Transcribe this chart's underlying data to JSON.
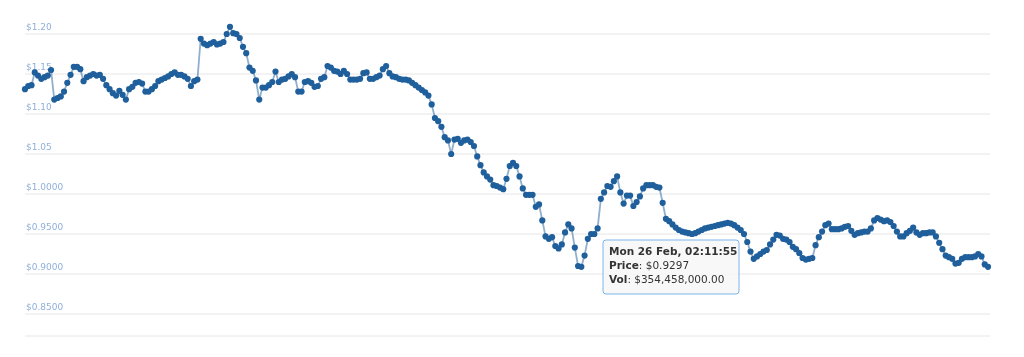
{
  "chart_data": {
    "type": "line",
    "categories": [
      null,
      null,
      null,
      null,
      null,
      null,
      null,
      null,
      null,
      null,
      null,
      null,
      null,
      null,
      null,
      null,
      null,
      null,
      null,
      null,
      null,
      null,
      null,
      null,
      null,
      null,
      null,
      null,
      null,
      null,
      null,
      null,
      null,
      null,
      null,
      null,
      null,
      null,
      null,
      null,
      null,
      null,
      null,
      null,
      null,
      null,
      null,
      null,
      null,
      null,
      null,
      null,
      null,
      null,
      null,
      null,
      null,
      null,
      null,
      null,
      null,
      null,
      null,
      null,
      null,
      null,
      null,
      null,
      null,
      null,
      null,
      null,
      null,
      null,
      null,
      null,
      null,
      null,
      null,
      null,
      null,
      null,
      null,
      null,
      null,
      null,
      null,
      null,
      null,
      null,
      null,
      null,
      null,
      null,
      null,
      null,
      null,
      null,
      null,
      null,
      null,
      null,
      null,
      null,
      null,
      null,
      null,
      null,
      null,
      null,
      null,
      null,
      null,
      null,
      null,
      null,
      null,
      null,
      null,
      null,
      null,
      null,
      null,
      null,
      null,
      null,
      null,
      null,
      null,
      null,
      null,
      null,
      null,
      null,
      null,
      null,
      null,
      null,
      null,
      null,
      null,
      null,
      null,
      null,
      null,
      null,
      null,
      null,
      null,
      null,
      null,
      null,
      null,
      null,
      null,
      null,
      null,
      null,
      null,
      null,
      null,
      null,
      null,
      null,
      null,
      null,
      null,
      null,
      null,
      null,
      null,
      null,
      null,
      null,
      null,
      null,
      null,
      null,
      null,
      null,
      null,
      null,
      null,
      null,
      null,
      null,
      null,
      null,
      null,
      null,
      null,
      null,
      null,
      null,
      null,
      null,
      null,
      null,
      null,
      null,
      null,
      null,
      null,
      null,
      null,
      null,
      null,
      null,
      null,
      null,
      null,
      null,
      null,
      null,
      null,
      null,
      null,
      null,
      null,
      null,
      null,
      null,
      null,
      null,
      null,
      null,
      null,
      null,
      null,
      null,
      null,
      null,
      null,
      null,
      null,
      null,
      null,
      null,
      null,
      null,
      null,
      null,
      null,
      null,
      null,
      null,
      null,
      null,
      null,
      null,
      null,
      null,
      null,
      null,
      null,
      null,
      null,
      null,
      null,
      null,
      null,
      null,
      null,
      null,
      null,
      null,
      null,
      null,
      null,
      null,
      null,
      null,
      null,
      null,
      null,
      null,
      null,
      null,
      null,
      null,
      null,
      null,
      null,
      null,
      null,
      null,
      null,
      null,
      null,
      null,
      null,
      null,
      null,
      null,
      null,
      null,
      null
    ],
    "series": [
      {
        "color": "#1f5f9c",
        "values": [
          1.131,
          1.135,
          1.136,
          1.152,
          1.148,
          1.144,
          1.146,
          1.148,
          1.155,
          1.118,
          1.12,
          1.122,
          1.128,
          1.139,
          1.149,
          1.159,
          1.159,
          1.156,
          1.141,
          1.146,
          1.148,
          1.15,
          1.148,
          1.149,
          1.144,
          1.136,
          1.131,
          1.126,
          1.123,
          1.129,
          1.124,
          1.118,
          1.131,
          1.134,
          1.139,
          1.14,
          1.138,
          1.128,
          1.128,
          1.131,
          1.135,
          1.141,
          1.143,
          1.145,
          1.147,
          1.15,
          1.152,
          1.149,
          1.149,
          1.147,
          1.144,
          1.135,
          1.141,
          1.143,
          1.194,
          1.188,
          1.186,
          1.188,
          1.19,
          1.187,
          1.188,
          1.19,
          1.2,
          1.209,
          1.201,
          1.2,
          1.195,
          1.184,
          1.176,
          1.158,
          1.154,
          1.142,
          1.118,
          1.133,
          1.133,
          1.136,
          1.14,
          1.153,
          1.14,
          1.143,
          1.144,
          1.147,
          1.15,
          1.146,
          1.128,
          1.128,
          1.14,
          1.141,
          1.139,
          1.134,
          1.135,
          1.144,
          1.146,
          1.16,
          1.158,
          1.154,
          1.153,
          1.15,
          1.154,
          1.15,
          1.143,
          1.143,
          1.143,
          1.144,
          1.151,
          1.152,
          1.144,
          1.144,
          1.146,
          1.148,
          1.156,
          1.16,
          1.151,
          1.147,
          1.146,
          1.144,
          1.143,
          1.143,
          1.142,
          1.139,
          1.136,
          1.133,
          1.13,
          1.127,
          1.123,
          1.112,
          1.095,
          1.091,
          1.084,
          1.071,
          1.067,
          1.05,
          1.068,
          1.069,
          1.064,
          1.067,
          1.068,
          1.065,
          1.06,
          1.047,
          1.036,
          1.027,
          1.022,
          1.018,
          1.011,
          1.01,
          1.008,
          1.006,
          1.019,
          1.035,
          1.039,
          1.035,
          1.022,
          1.007,
          0.999,
          0.999,
          0.999,
          0.984,
          0.987,
          0.967,
          0.947,
          0.944,
          0.946,
          0.935,
          0.932,
          0.937,
          0.952,
          0.962,
          0.957,
          0.933,
          0.91,
          0.909,
          0.923,
          0.944,
          0.95,
          0.95,
          0.957,
          0.994,
          1.002,
          1.01,
          1.009,
          1.016,
          1.022,
          1.002,
          0.988,
          0.998,
          0.998,
          0.985,
          0.99,
          0.997,
          1.007,
          1.011,
          1.011,
          1.011,
          1.009,
          1.008,
          0.989,
          0.969,
          0.966,
          0.962,
          0.958,
          0.955,
          0.953,
          0.952,
          0.951,
          0.95,
          0.951,
          0.953,
          0.955,
          0.957,
          0.958,
          0.959,
          0.96,
          0.961,
          0.962,
          0.963,
          0.964,
          0.963,
          0.961,
          0.958,
          0.955,
          0.95,
          0.94,
          0.928,
          0.919,
          0.922,
          0.925,
          0.928,
          0.93,
          0.937,
          0.943,
          0.949,
          0.948,
          0.944,
          0.943,
          0.94,
          0.934,
          0.931,
          0.926,
          0.92,
          0.918,
          0.919,
          0.92,
          0.936,
          0.946,
          0.953,
          0.961,
          0.963,
          0.956,
          0.956,
          0.956,
          0.957,
          0.959,
          0.96,
          0.954,
          0.949,
          0.951,
          0.952,
          0.953,
          0.953,
          0.957,
          0.967,
          0.97,
          0.968,
          0.966,
          0.967,
          0.965,
          0.96,
          0.953,
          0.947,
          0.947,
          0.951,
          0.954,
          0.958,
          0.952,
          0.949,
          0.951,
          0.951,
          0.952,
          0.952,
          0.947,
          0.939,
          0.931,
          0.923,
          0.921,
          0.919,
          0.913,
          0.914,
          0.919,
          0.921,
          0.921,
          0.921,
          0.922,
          0.925,
          0.922,
          0.912,
          0.909
        ]
      }
    ],
    "ylim": [
      0.8225,
      1.24
    ],
    "yticks": [
      {
        "value": 1.2,
        "label": "$1.20"
      },
      {
        "value": 1.15,
        "label": "$1.15"
      },
      {
        "value": 1.1,
        "label": "$1.10"
      },
      {
        "value": 1.05,
        "label": "$1.05"
      },
      {
        "value": 1.0,
        "label": "$1.0000"
      },
      {
        "value": 0.95,
        "label": "$0.9500"
      },
      {
        "value": 0.9,
        "label": "$0.9000"
      },
      {
        "value": 0.85,
        "label": "$0.8500"
      }
    ],
    "tick_labels": "y",
    "grid": "y",
    "marker": "circle",
    "line_style": "solid",
    "annotations": [
      "Mon 26 Feb, 02:11:55",
      "Price: $0.9297",
      "Vol: $354,458,000.00"
    ]
  }
}
